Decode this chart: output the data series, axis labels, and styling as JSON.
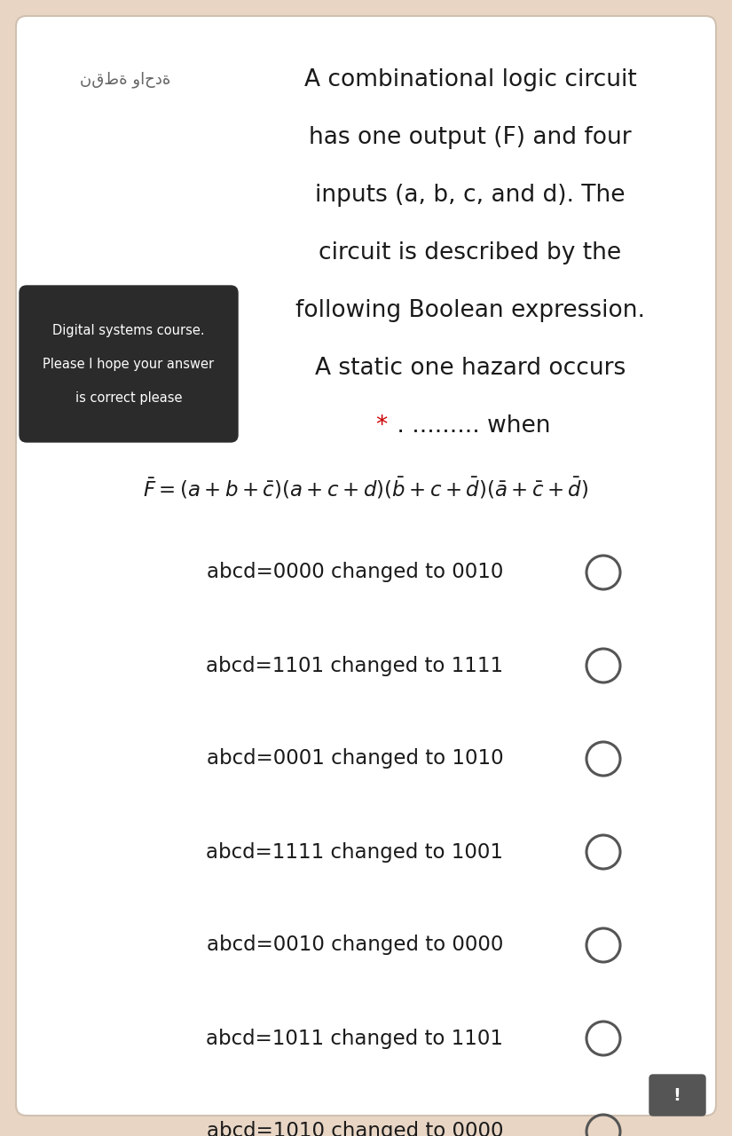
{
  "bg_color": "#e8d5c4",
  "card_color": "#ffffff",
  "arabic_text": "نقطة واحدة",
  "header_lines": [
    "A combinational logic circuit",
    "has one output (F) and four",
    "inputs (a, b, c, and d). The",
    "circuit is described by the",
    "following Boolean expression.",
    "A static one hazard occurs"
  ],
  "star_text": "*",
  "star_color": "#cc0000",
  "when_text": " . ......... when",
  "black_box_lines": [
    "Digital systems course.",
    "Please I hope your answer",
    "is correct please"
  ],
  "formula": "$\\bar{F} = (a + b + \\bar{c})(a + c + d)(\\bar{b} + c + \\bar{d})(\\bar{a} + \\bar{c} + \\bar{d})$",
  "options": [
    "abcd=0000 changed to 0010",
    "abcd=1101 changed to 1111",
    "abcd=0001 changed to 1010",
    "abcd=1111 changed to 1001",
    "abcd=0010 changed to 0000",
    "abcd=1011 changed to 1101",
    "abcd=1010 changed to 0000"
  ]
}
